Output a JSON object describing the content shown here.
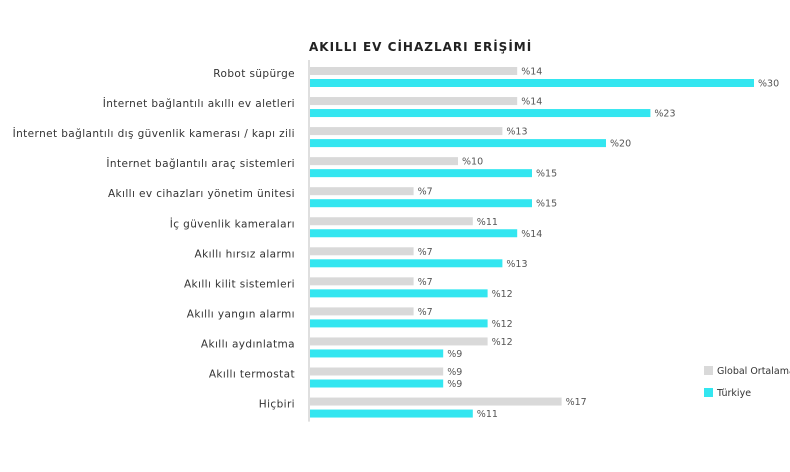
{
  "chart_data": {
    "type": "bar",
    "orientation": "horizontal",
    "title": "AKILLI EV CİHAZLARI ERİŞİMİ",
    "value_prefix": "%",
    "categories": [
      "Robot süpürge",
      "İnternet bağlantılı akıllı ev aletleri",
      "İnternet bağlantılı dış güvenlik kamerası / kapı zili",
      "İnternet bağlantılı araç sistemleri",
      "Akıllı ev cihazları yönetim ünitesi",
      "İç güvenlik kameraları",
      "Akıllı hırsız alarmı",
      "Akıllı kilit sistemleri",
      "Akıllı yangın alarmı",
      "Akıllı aydınlatma",
      "Akıllı termostat",
      "Hiçbiri"
    ],
    "series": [
      {
        "name": "Global Ortalama",
        "color": "#d9d9d9",
        "values": [
          14,
          14,
          13,
          10,
          7,
          11,
          7,
          7,
          7,
          12,
          9,
          17
        ]
      },
      {
        "name": "Türkiye",
        "color": "#33e6f0",
        "values": [
          30,
          23,
          20,
          15,
          15,
          14,
          13,
          12,
          12,
          9,
          9,
          11
        ]
      }
    ],
    "xlim": [
      0,
      30
    ],
    "grid": false,
    "legend_position": "bottom-right"
  }
}
